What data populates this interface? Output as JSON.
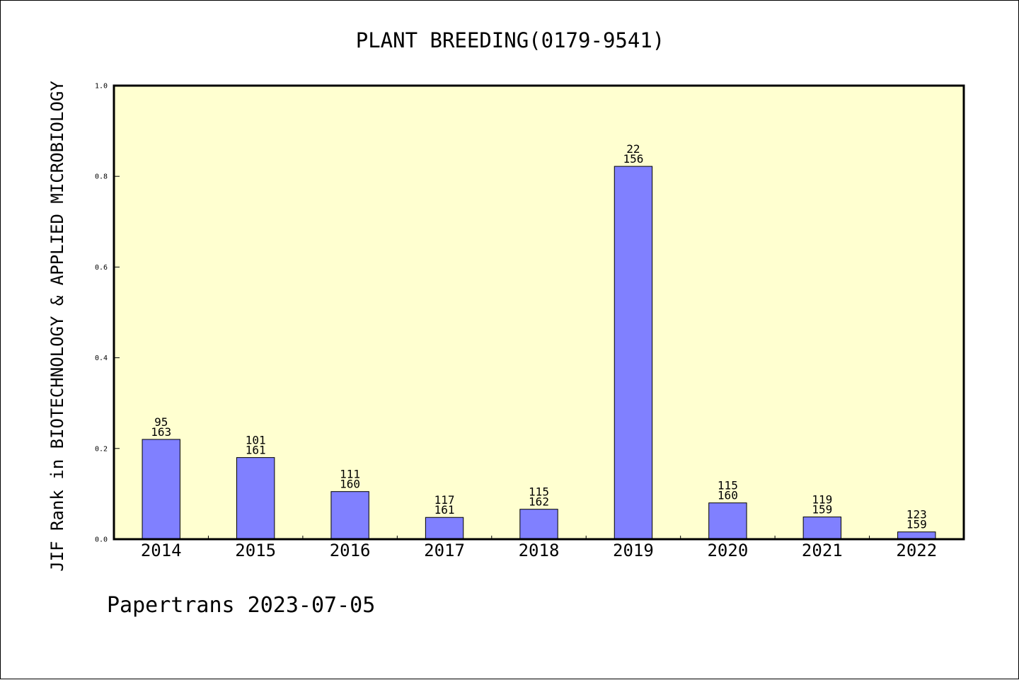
{
  "chart_data": {
    "type": "bar",
    "title": "PLANT BREEDING(0179-9541)",
    "ylabel": "JIF Rank in BIOTECHNOLOGY & APPLIED MICROBIOLOGY",
    "xlabel": "",
    "ylim": [
      0,
      1.0
    ],
    "yticks": [
      "0.0",
      "0.2",
      "0.4",
      "0.6",
      "0.8",
      "1.0"
    ],
    "categories": [
      "2014",
      "2015",
      "2016",
      "2017",
      "2018",
      "2019",
      "2020",
      "2021",
      "2022"
    ],
    "values": [
      0.22,
      0.18,
      0.105,
      0.048,
      0.066,
      0.822,
      0.08,
      0.049,
      0.016
    ],
    "labels": [
      [
        "95",
        "163"
      ],
      [
        "101",
        "161"
      ],
      [
        "111",
        "160"
      ],
      [
        "117",
        "161"
      ],
      [
        "115",
        "162"
      ],
      [
        "22",
        "156"
      ],
      [
        "115",
        "160"
      ],
      [
        "119",
        "159"
      ],
      [
        "123",
        "159"
      ]
    ],
    "grid": false,
    "legend": "none",
    "colors": {
      "bar": "#8080ff",
      "plot_background": "#ffffd0",
      "axis": "#000000"
    }
  },
  "footer": "Papertrans 2023-07-05"
}
